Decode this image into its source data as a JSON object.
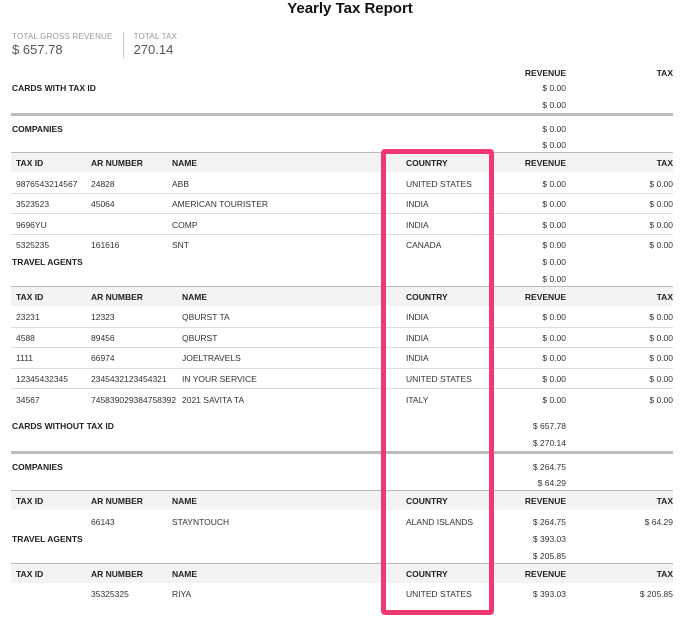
{
  "report_title": "Yearly Tax Report",
  "summary": {
    "gross_label": "TOTAL GROSS REVENUE",
    "gross_value": "$ 657.78",
    "tax_label": "TOTAL TAX",
    "tax_value": "270.14"
  },
  "col_revenue": "REVENUE",
  "col_tax": "TAX",
  "with_tax_id": {
    "title": "CARDS WITH TAX ID",
    "rev1": "$ 0.00",
    "rev2": "$ 0.00",
    "companies": {
      "title": "COMPANIES",
      "rev1": "$ 0.00",
      "rev2": "$ 0.00",
      "headers": {
        "tax_id": "TAX ID",
        "ar_number": "AR NUMBER",
        "name": "NAME",
        "country": "COUNTRY",
        "revenue": "REVENUE",
        "tax": "TAX"
      },
      "rows": [
        {
          "tax_id": "9876543214567",
          "ar": "24828",
          "name": "ABB",
          "country": "UNITED STATES",
          "revenue": "$ 0.00",
          "tax": "$ 0.00"
        },
        {
          "tax_id": "3523523",
          "ar": "45064",
          "name": "AMERICAN TOURISTER",
          "country": "INDIA",
          "revenue": "$ 0.00",
          "tax": "$ 0.00"
        },
        {
          "tax_id": "9696YU",
          "ar": "",
          "name": "COMP",
          "country": "INDIA",
          "revenue": "$ 0.00",
          "tax": "$ 0.00"
        },
        {
          "tax_id": "5325235",
          "ar": "161616",
          "name": "SNT",
          "country": "CANADA",
          "revenue": "$ 0.00",
          "tax": "$ 0.00"
        }
      ]
    },
    "agents": {
      "title": "TRAVEL AGENTS",
      "rev1": "$ 0.00",
      "rev2": "$ 0.00",
      "headers": {
        "tax_id": "TAX ID",
        "ar_number": "AR NUMBER",
        "name": "NAME",
        "country": "COUNTRY",
        "revenue": "REVENUE",
        "tax": "TAX"
      },
      "rows": [
        {
          "tax_id": "23231",
          "ar": "12323",
          "name": "QBURST TA",
          "country": "INDIA",
          "revenue": "$ 0.00",
          "tax": "$ 0.00"
        },
        {
          "tax_id": "4588",
          "ar": "89456",
          "name": "QBURST",
          "country": "INDIA",
          "revenue": "$ 0.00",
          "tax": "$ 0.00"
        },
        {
          "tax_id": "1111",
          "ar": "66974",
          "name": "JOELTRAVELS",
          "country": "INDIA",
          "revenue": "$ 0.00",
          "tax": "$ 0.00"
        },
        {
          "tax_id": "12345432345",
          "ar": "2345432123454321",
          "name": "IN YOUR SERVICE",
          "country": "UNITED STATES",
          "revenue": "$ 0.00",
          "tax": "$ 0.00"
        },
        {
          "tax_id": "34567",
          "ar": "745839029384758392",
          "name": "2021 SAVITA TA",
          "country": "ITALY",
          "revenue": "$ 0.00",
          "tax": "$ 0.00"
        }
      ]
    }
  },
  "without_tax_id": {
    "title": "CARDS WITHOUT TAX ID",
    "rev1": "$ 657.78",
    "rev2": "$ 270.14",
    "companies": {
      "title": "COMPANIES",
      "rev1": "$ 264.75",
      "rev2": "$ 64.29",
      "headers": {
        "tax_id": "TAX ID",
        "ar_number": "AR NUMBER",
        "name": "NAME",
        "country": "COUNTRY",
        "revenue": "REVENUE",
        "tax": "TAX"
      },
      "rows": [
        {
          "tax_id": "",
          "ar": "66143",
          "name": "STAYNTOUCH",
          "country": "ALAND ISLANDS",
          "revenue": "$ 264.75",
          "tax": "$ 64.29"
        }
      ]
    },
    "agents": {
      "title": "TRAVEL AGENTS",
      "rev1": "$ 393.03",
      "rev2": "$ 205.85",
      "headers": {
        "tax_id": "TAX ID",
        "ar_number": "AR NUMBER",
        "name": "NAME",
        "country": "COUNTRY",
        "revenue": "REVENUE",
        "tax": "TAX"
      },
      "rows": [
        {
          "tax_id": "",
          "ar": "35325325",
          "name": "RIYA",
          "country": "UNITED STATES",
          "revenue": "$ 393.03",
          "tax": "$ 205.85"
        }
      ]
    }
  },
  "colors": {
    "highlight": "#f03873",
    "band": "#f3f3f3"
  }
}
